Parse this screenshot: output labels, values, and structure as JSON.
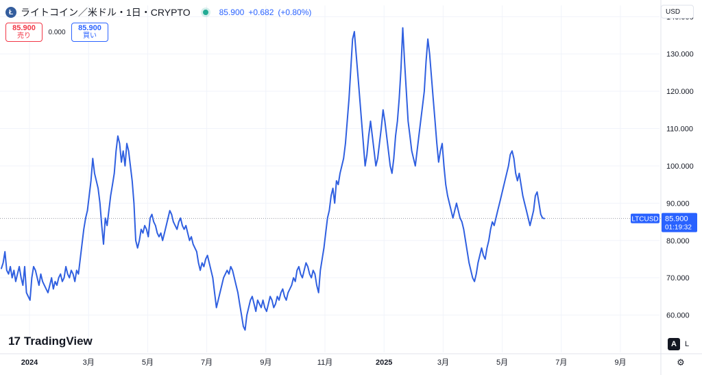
{
  "header": {
    "coin_icon": "litecoin-icon",
    "symbol_title": "ライトコイン／米ドル・1日・CRYPTO",
    "last_price": "85.900",
    "change": "+0.682",
    "change_pct": "(+0.80%)"
  },
  "trade": {
    "sell_price": "85.900",
    "sell_label": "売り",
    "spread": "0.000",
    "buy_price": "85.900",
    "buy_label": "買い"
  },
  "currency": "USD",
  "logo_text": "TradingView",
  "scale": {
    "auto": "A",
    "log": "L"
  },
  "colors": {
    "line": "#2f5fe0",
    "accent": "#2962ff",
    "sell": "#f23645",
    "dot": "#22ab94"
  },
  "chart_data": {
    "type": "line",
    "ylim": [
      50,
      143
    ],
    "y_ticks": [
      "140.000",
      "130.000",
      "120.000",
      "110.000",
      "100.000",
      "90.000",
      "80.000",
      "70.000",
      "60.000"
    ],
    "x_ticks": [
      "2024",
      "3月",
      "5月",
      "7月",
      "9月",
      "11月",
      "2025",
      "3月",
      "5月",
      "7月",
      "9月"
    ],
    "price_label": {
      "symbol": "LTCUSD",
      "price": "85.900",
      "countdown": "01:19:32",
      "value": 85.9
    },
    "series": [
      {
        "values": [
          72.5,
          74,
          77,
          72,
          71,
          73,
          70,
          72,
          69,
          71,
          73,
          70,
          68,
          73,
          66,
          65,
          64,
          70,
          73,
          72,
          70,
          68,
          71,
          69,
          68,
          67,
          66,
          68,
          70,
          67,
          69,
          68,
          70,
          71,
          69,
          70,
          73,
          71,
          70,
          72,
          71,
          69,
          72,
          71,
          75,
          79,
          83,
          86,
          88,
          92,
          96,
          102,
          98,
          96,
          94,
          90,
          84,
          79,
          86,
          84,
          88,
          92,
          95,
          98,
          104,
          108,
          106,
          101,
          104,
          100,
          106,
          104,
          100,
          96,
          90,
          80,
          78,
          80,
          83,
          82,
          84,
          83,
          81,
          86,
          87,
          85,
          84,
          82,
          81,
          82,
          80,
          82,
          84,
          86,
          88,
          87,
          85,
          84,
          83,
          85,
          86,
          84,
          83,
          84,
          82,
          80,
          81,
          79,
          78,
          77,
          74,
          72,
          74,
          73,
          75,
          76,
          74,
          72,
          70,
          66,
          62,
          64,
          66,
          68,
          70,
          71,
          72,
          71,
          73,
          72,
          70,
          68,
          66,
          63,
          60,
          57,
          56,
          60,
          62,
          64,
          65,
          63,
          61,
          64,
          63,
          62,
          64,
          62,
          61,
          63,
          65,
          64,
          62,
          63,
          65,
          64,
          66,
          67,
          65,
          64,
          66,
          67,
          68,
          70,
          69,
          72,
          73,
          71,
          70,
          72,
          74,
          73,
          71,
          70,
          72,
          71,
          68,
          66,
          72,
          75,
          78,
          82,
          86,
          88,
          92,
          94,
          90,
          96,
          95,
          98,
          100,
          102,
          106,
          112,
          118,
          126,
          134,
          136,
          130,
          124,
          118,
          112,
          106,
          100,
          103,
          108,
          112,
          108,
          104,
          100,
          102,
          106,
          110,
          115,
          112,
          108,
          104,
          100,
          98,
          102,
          108,
          112,
          118,
          126,
          137,
          128,
          120,
          112,
          108,
          104,
          102,
          100,
          104,
          108,
          112,
          116,
          120,
          128,
          134,
          130,
          124,
          118,
          112,
          106,
          101,
          104,
          106,
          100,
          95,
          92,
          90,
          88,
          86,
          88,
          90,
          88,
          86,
          85,
          83,
          80,
          77,
          74,
          72,
          70,
          69,
          71,
          74,
          76,
          78,
          76,
          75,
          78,
          80,
          83,
          85,
          84,
          86,
          88,
          90,
          92,
          94,
          96,
          98,
          100,
          103,
          104,
          102,
          98,
          96,
          98,
          95,
          92,
          90,
          88,
          86,
          84,
          86,
          88,
          92,
          93,
          90,
          87,
          86,
          85.9
        ]
      }
    ]
  }
}
